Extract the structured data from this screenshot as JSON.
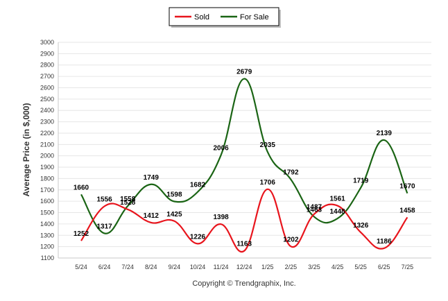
{
  "chart_data": {
    "type": "line",
    "ylabel": "Average Price (in $,000)",
    "xlabel": "",
    "categories": [
      "5/24",
      "6/24",
      "7/24",
      "8/24",
      "9/24",
      "10/24",
      "11/24",
      "12/24",
      "1/25",
      "2/25",
      "3/25",
      "4/25",
      "5/25",
      "6/25",
      "7/25"
    ],
    "yticks": [
      1100,
      1200,
      1300,
      1400,
      1500,
      1600,
      1700,
      1800,
      1900,
      2000,
      2100,
      2200,
      2300,
      2400,
      2500,
      2600,
      2700,
      2800,
      2900,
      3000
    ],
    "ylim": [
      1100,
      3000
    ],
    "grid": true,
    "legend_position": "top-center",
    "series": [
      {
        "name": "Sold",
        "color": "#e8141c",
        "values": [
          1252,
          1556,
          1528,
          1412,
          1425,
          1226,
          1398,
          1163,
          1706,
          1202,
          1487,
          1561,
          1326,
          1186,
          1458
        ]
      },
      {
        "name": "For Sale",
        "color": "#1a6414",
        "values": [
          1660,
          1317,
          1558,
          1749,
          1598,
          1682,
          2006,
          2679,
          2035,
          1792,
          1463,
          1448,
          1719,
          2139,
          1670
        ]
      }
    ],
    "footer": "Copyright © Trendgraphix, Inc."
  }
}
